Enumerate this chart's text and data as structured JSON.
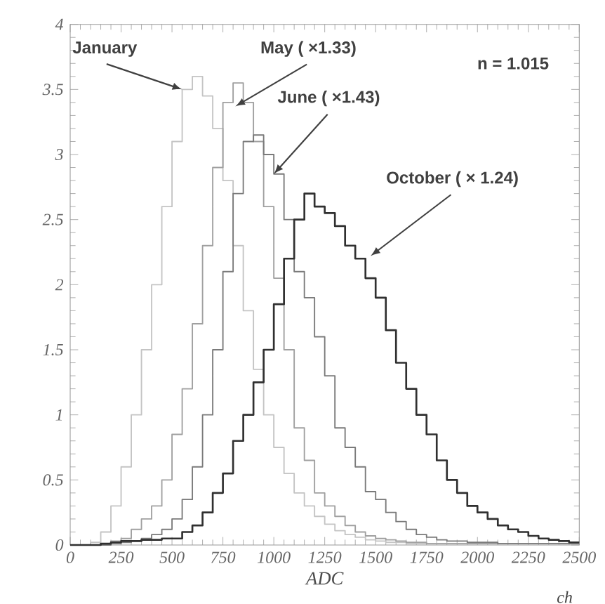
{
  "chart_data": {
    "type": "step",
    "xlabel": "ADC",
    "x": [
      0,
      50,
      100,
      150,
      200,
      250,
      300,
      350,
      400,
      450,
      500,
      550,
      600,
      650,
      700,
      750,
      800,
      850,
      900,
      950,
      1000,
      1050,
      1100,
      1150,
      1200,
      1250,
      1300,
      1350,
      1400,
      1450,
      1500,
      1550,
      1600,
      1650,
      1700,
      1750,
      1800,
      1850,
      1900,
      1950,
      2000,
      2050,
      2100,
      2150,
      2200,
      2250,
      2300,
      2350,
      2400,
      2450,
      2500
    ],
    "series": [
      {
        "color": "#c4c4c4",
        "values": [
          0,
          0,
          0.02,
          0.1,
          0.3,
          0.6,
          1.0,
          1.5,
          2.0,
          2.6,
          3.1,
          3.5,
          3.6,
          3.45,
          3.2,
          2.8,
          2.3,
          1.8,
          1.35,
          1.0,
          0.75,
          0.55,
          0.4,
          0.3,
          0.22,
          0.16,
          0.11,
          0.08,
          0.06,
          0.04,
          0.03,
          0.02,
          0.02,
          0.01,
          0.01,
          0.01,
          0.01,
          0.01,
          0.01,
          0.01,
          0.01,
          0.01,
          0.01,
          0.01,
          0.01,
          0.01,
          0.01,
          0.01,
          0.01,
          0.01,
          0.01
        ]
      },
      {
        "color": "#a0a0a0",
        "values": [
          0,
          0,
          0,
          0.01,
          0.03,
          0.05,
          0.12,
          0.2,
          0.3,
          0.5,
          0.85,
          1.2,
          1.7,
          2.3,
          2.9,
          3.4,
          3.55,
          3.4,
          3.1,
          2.6,
          2.05,
          1.5,
          0.9,
          0.65,
          0.4,
          0.3,
          0.22,
          0.15,
          0.1,
          0.07,
          0.05,
          0.04,
          0.03,
          0.02,
          0.02,
          0.01,
          0.01,
          0.01,
          0.01,
          0.01,
          0.01,
          0.01,
          0.01,
          0.01,
          0.01,
          0.01,
          0.01,
          0.01,
          0.01,
          0.01,
          0.01
        ]
      },
      {
        "color": "#7a7a7a",
        "values": [
          0,
          0,
          0,
          0,
          0.01,
          0.02,
          0.03,
          0.05,
          0.08,
          0.12,
          0.2,
          0.35,
          0.6,
          1.0,
          1.5,
          2.1,
          2.7,
          3.1,
          3.15,
          3.0,
          2.85,
          2.5,
          2.1,
          1.9,
          1.6,
          1.3,
          0.9,
          0.75,
          0.6,
          0.41,
          0.35,
          0.25,
          0.18,
          0.12,
          0.08,
          0.06,
          0.04,
          0.03,
          0.03,
          0.02,
          0.02,
          0.02,
          0.01,
          0.01,
          0.01,
          0.01,
          0.01,
          0.01,
          0.01,
          0.01,
          0.01
        ]
      },
      {
        "color": "#303030",
        "values": [
          0,
          0,
          0,
          0.01,
          0.02,
          0.03,
          0.03,
          0.04,
          0.04,
          0.05,
          0.05,
          0.1,
          0.15,
          0.25,
          0.4,
          0.55,
          0.8,
          1.0,
          1.25,
          1.5,
          1.85,
          2.2,
          2.5,
          2.7,
          2.6,
          2.55,
          2.45,
          2.3,
          2.2,
          2.05,
          1.9,
          1.65,
          1.4,
          1.2,
          1.0,
          0.85,
          0.65,
          0.5,
          0.4,
          0.3,
          0.25,
          0.2,
          0.15,
          0.12,
          0.1,
          0.07,
          0.05,
          0.04,
          0.03,
          0.02,
          0.02
        ]
      }
    ],
    "xlim": [
      0,
      2500
    ],
    "ylim": [
      0,
      4
    ],
    "xticks": [
      0,
      250,
      500,
      750,
      1000,
      1250,
      1500,
      1750,
      2000,
      2250,
      2500
    ],
    "yticks": [
      0,
      {
        "value": 0.5,
        "label": "0.5"
      },
      1,
      {
        "value": 1.5,
        "label": "1.5"
      },
      2,
      {
        "value": 2.5,
        "label": "2.5"
      },
      3,
      {
        "value": 3.5,
        "label": "3.5"
      },
      4
    ],
    "annotations": [
      {
        "text": "January",
        "x": 550,
        "y": 3.5
      },
      {
        "text": "May ( ×1.33)",
        "x": 811,
        "y": 3.37
      },
      {
        "text": "June ( ×1.43)",
        "x": 1000,
        "y": 2.85
      },
      {
        "text": "October ( × 1.24)",
        "x": 1475,
        "y": 2.22
      },
      "n = 1.015",
      "ch"
    ]
  }
}
